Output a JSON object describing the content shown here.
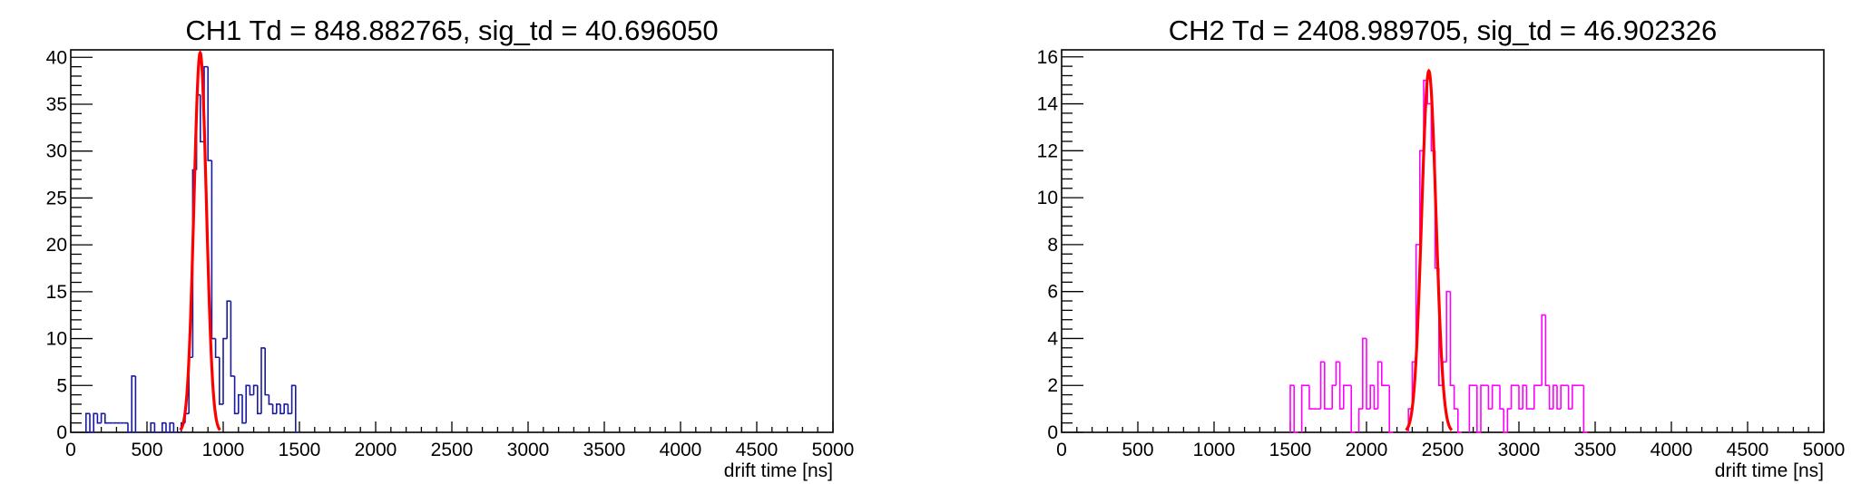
{
  "chart_data": [
    {
      "type": "histogram",
      "title": "CH1 Td = 848.882765, sig_td = 40.696050",
      "xlabel": "drift time [ns]",
      "ylabel": "",
      "xlim": [
        0,
        5000
      ],
      "ylim": [
        0,
        40.8
      ],
      "x_ticks": [
        0,
        500,
        1000,
        1500,
        2000,
        2500,
        3000,
        3500,
        4000,
        4500,
        5000
      ],
      "y_ticks": [
        0,
        5,
        10,
        15,
        20,
        25,
        30,
        35,
        40
      ],
      "bin_width": 25,
      "hist_color": "#1a1aa0",
      "fit_color": "#ff0000",
      "bins": [
        [
          100,
          2
        ],
        [
          125,
          0
        ],
        [
          150,
          2
        ],
        [
          175,
          1
        ],
        [
          200,
          2
        ],
        [
          225,
          1
        ],
        [
          250,
          1
        ],
        [
          275,
          1
        ],
        [
          300,
          1
        ],
        [
          325,
          1
        ],
        [
          350,
          1
        ],
        [
          375,
          0
        ],
        [
          400,
          6
        ],
        [
          425,
          0
        ],
        [
          525,
          1
        ],
        [
          550,
          0
        ],
        [
          600,
          1
        ],
        [
          625,
          0
        ],
        [
          650,
          1
        ],
        [
          675,
          0
        ],
        [
          725,
          1
        ],
        [
          750,
          2
        ],
        [
          775,
          8
        ],
        [
          800,
          28
        ],
        [
          825,
          36
        ],
        [
          850,
          31
        ],
        [
          875,
          39
        ],
        [
          900,
          29
        ],
        [
          925,
          10
        ],
        [
          950,
          8
        ],
        [
          975,
          3
        ],
        [
          1000,
          10
        ],
        [
          1025,
          14
        ],
        [
          1050,
          6
        ],
        [
          1075,
          2
        ],
        [
          1100,
          4
        ],
        [
          1125,
          1
        ],
        [
          1150,
          5
        ],
        [
          1175,
          4
        ],
        [
          1200,
          5
        ],
        [
          1225,
          2
        ],
        [
          1250,
          9
        ],
        [
          1275,
          4
        ],
        [
          1300,
          3
        ],
        [
          1325,
          2
        ],
        [
          1350,
          3
        ],
        [
          1375,
          2
        ],
        [
          1400,
          3
        ],
        [
          1425,
          2
        ],
        [
          1450,
          5
        ],
        [
          1475,
          0
        ]
      ],
      "fit": {
        "function": "gaus",
        "mean": 848.882765,
        "sigma": 40.69605,
        "amplitude": 40.5
      }
    },
    {
      "type": "histogram",
      "title": "CH2 Td = 2408.989705, sig_td = 46.902326",
      "xlabel": "drift time [ns]",
      "ylabel": "",
      "xlim": [
        0,
        5000
      ],
      "ylim": [
        0,
        16.3
      ],
      "x_ticks": [
        0,
        500,
        1000,
        1500,
        2000,
        2500,
        3000,
        3500,
        4000,
        4500,
        5000
      ],
      "y_ticks": [
        0,
        2,
        4,
        6,
        8,
        10,
        12,
        14,
        16
      ],
      "bin_width": 25,
      "hist_color": "#ff00ff",
      "fit_color": "#ff0000",
      "bins": [
        [
          1500,
          2
        ],
        [
          1525,
          0
        ],
        [
          1575,
          2
        ],
        [
          1600,
          2
        ],
        [
          1625,
          1
        ],
        [
          1650,
          1
        ],
        [
          1675,
          1
        ],
        [
          1700,
          3
        ],
        [
          1725,
          1
        ],
        [
          1750,
          1
        ],
        [
          1775,
          2
        ],
        [
          1800,
          3
        ],
        [
          1825,
          1
        ],
        [
          1850,
          2
        ],
        [
          1875,
          2
        ],
        [
          1900,
          0
        ],
        [
          1950,
          1
        ],
        [
          1975,
          4
        ],
        [
          2000,
          1
        ],
        [
          2025,
          2
        ],
        [
          2050,
          1
        ],
        [
          2075,
          3
        ],
        [
          2100,
          2
        ],
        [
          2125,
          2
        ],
        [
          2150,
          0
        ],
        [
          2275,
          1
        ],
        [
          2300,
          3
        ],
        [
          2325,
          8
        ],
        [
          2350,
          12
        ],
        [
          2375,
          15
        ],
        [
          2400,
          14
        ],
        [
          2425,
          12
        ],
        [
          2450,
          7
        ],
        [
          2475,
          2
        ],
        [
          2500,
          3
        ],
        [
          2525,
          6
        ],
        [
          2550,
          2
        ],
        [
          2575,
          1
        ],
        [
          2600,
          0
        ],
        [
          2675,
          2
        ],
        [
          2700,
          2
        ],
        [
          2725,
          0
        ],
        [
          2750,
          2
        ],
        [
          2775,
          2
        ],
        [
          2800,
          1
        ],
        [
          2825,
          2
        ],
        [
          2850,
          2
        ],
        [
          2875,
          1
        ],
        [
          2900,
          0
        ],
        [
          2925,
          1
        ],
        [
          2950,
          2
        ],
        [
          2975,
          2
        ],
        [
          3000,
          1
        ],
        [
          3025,
          2
        ],
        [
          3050,
          1
        ],
        [
          3075,
          1
        ],
        [
          3100,
          2
        ],
        [
          3125,
          2
        ],
        [
          3150,
          5
        ],
        [
          3175,
          2
        ],
        [
          3200,
          1
        ],
        [
          3225,
          2
        ],
        [
          3250,
          1
        ],
        [
          3275,
          2
        ],
        [
          3300,
          2
        ],
        [
          3325,
          1
        ],
        [
          3350,
          2
        ],
        [
          3375,
          2
        ],
        [
          3400,
          2
        ],
        [
          3425,
          0
        ]
      ],
      "fit": {
        "function": "gaus",
        "mean": 2408.989705,
        "sigma": 46.902326,
        "amplitude": 15.4
      }
    }
  ]
}
